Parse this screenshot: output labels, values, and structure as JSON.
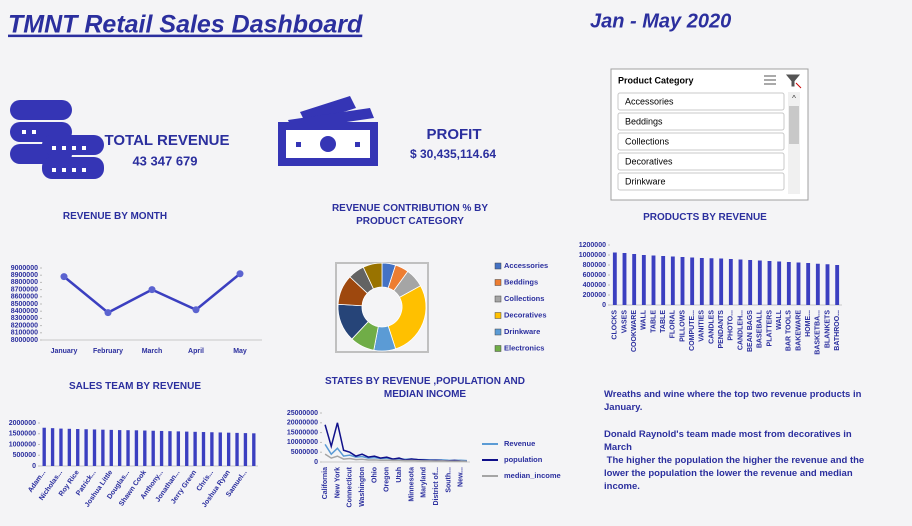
{
  "header": {
    "title": "TMNT Retail Sales  Dashboard",
    "period": "Jan - May 2020"
  },
  "kpis": [
    {
      "label": "TOTAL REVENUE",
      "value": "43 347 679"
    },
    {
      "label": "PROFIT",
      "value": "$ 30,435,114.64"
    }
  ],
  "slicer": {
    "title": "Product Category",
    "items": [
      "Accessories",
      "Beddings",
      "Collections",
      "Decoratives",
      "Drinkware"
    ]
  },
  "notes": [
    "Wreaths and wine where the top two revenue products in January.",
    "Donald Raynold's team made most from decoratives in March",
    " The higher the population the higher the revenue and the lower the population the lower the revenue and median income."
  ],
  "chart_data": [
    {
      "type": "line",
      "title": "REVENUE BY MONTH",
      "categories": [
        "January",
        "February",
        "March",
        "April",
        "May"
      ],
      "values": [
        8880000,
        8380000,
        8700000,
        8420000,
        8920000
      ],
      "color": "#3b3fc0",
      "ylim": [
        8000000,
        9000000
      ],
      "yticks": [
        8000000,
        8100000,
        8200000,
        8300000,
        8400000,
        8500000,
        8600000,
        8700000,
        8800000,
        8900000,
        9000000
      ]
    },
    {
      "type": "pie",
      "title": "REVENUE CONTRIBUTION % BY PRODUCT CATEGORY",
      "categories": [
        "Accessories",
        "Beddings",
        "Collections",
        "Decoratives",
        "Drinkware",
        "Electronics",
        null,
        null,
        null,
        null
      ],
      "values": [
        5,
        5,
        7,
        28,
        8,
        9,
        14,
        11,
        6,
        7
      ],
      "colors": [
        "#4472c4",
        "#ed7d31",
        "#a5a5a5",
        "#ffc000",
        "#5b9bd5",
        "#70ad47",
        "#264478",
        "#9e480e",
        "#636363",
        "#997300"
      ]
    },
    {
      "type": "bar",
      "title": "PRODUCTS BY REVENUE",
      "categories": [
        "CLOCKS",
        "VASES",
        "COOKWARE",
        "WALL",
        "TABLE",
        "TABLE",
        "FLORAL",
        "PILLOWS",
        "COMPUTE...",
        "VANITIES",
        "CANDLES",
        "PENDANTS",
        "PHOTO...",
        "CANDLEH...",
        "BEAN BAGS",
        "BASEBALL",
        "PLATTERS",
        "WALL",
        "BAR TOOLS",
        "BAKEWARE",
        "HOME...",
        "BASKETBA...",
        "BLANKETS",
        "BATHROO..."
      ],
      "values": [
        1050000,
        1040000,
        1020000,
        1000000,
        990000,
        980000,
        970000,
        960000,
        950000,
        940000,
        935000,
        930000,
        920000,
        910000,
        900000,
        890000,
        880000,
        870000,
        860000,
        850000,
        840000,
        825000,
        815000,
        800000
      ],
      "color": "#3b3fc0",
      "ylim": [
        0,
        1200000
      ],
      "yticks": [
        0,
        200000,
        400000,
        600000,
        800000,
        1000000,
        1200000
      ]
    },
    {
      "type": "bar",
      "title": "SALES TEAM BY REVENUE",
      "categories": [
        "Adam...",
        null,
        "Nicholas...",
        null,
        "Roy Rice",
        null,
        "Patrick...",
        null,
        "Joshua Little",
        null,
        "Douglas...",
        null,
        "Shawn Cook",
        null,
        "Anthony...",
        null,
        "Jonathan...",
        null,
        "Jerry Green",
        null,
        "Chris...",
        null,
        "Joshua Ryan",
        null,
        "Samuel...",
        null
      ],
      "values": [
        1780000,
        1760000,
        1740000,
        1730000,
        1720000,
        1710000,
        1700000,
        1690000,
        1680000,
        1670000,
        1665000,
        1660000,
        1650000,
        1640000,
        1630000,
        1620000,
        1610000,
        1600000,
        1590000,
        1580000,
        1570000,
        1560000,
        1550000,
        1540000,
        1530000,
        1520000
      ],
      "color": "#3b3fc0",
      "ylim": [
        0,
        2000000
      ],
      "yticks": [
        0,
        500000,
        1000000,
        1500000,
        2000000
      ]
    },
    {
      "type": "line",
      "title": "STATES BY REVENUE ,POPULATION AND MEDIAN INCOME",
      "categories": [
        "California",
        null,
        "New York",
        null,
        "Connecticut",
        null,
        "Washington",
        null,
        "Ohio",
        null,
        "Oregon",
        null,
        "Utah",
        null,
        "Minnesota",
        null,
        "Maryland",
        null,
        "District of...",
        null,
        "South...",
        null,
        "New...",
        null
      ],
      "series": [
        {
          "name": "Revenue",
          "color": "#5b9bd5",
          "values": [
            9000000,
            4000000,
            7000000,
            3000000,
            3500000,
            2500000,
            2800000,
            2000000,
            2200000,
            1800000,
            1900000,
            1500000,
            1600000,
            1400000,
            1500000,
            1300000,
            1200000,
            1100000,
            1000000,
            1100000,
            900000,
            800000,
            900000,
            700000
          ]
        },
        {
          "name": "population",
          "color": "#10108a",
          "values": [
            19000000,
            8000000,
            20000000,
            6000000,
            5000000,
            3000000,
            4000000,
            2500000,
            3000000,
            2000000,
            2500000,
            1500000,
            2000000,
            1000000,
            1500000,
            1200000,
            1000000,
            800000,
            900000,
            700000,
            600000,
            800000,
            500000,
            400000
          ]
        },
        {
          "name": "median_income",
          "color": "#a5a5a5",
          "values": [
            4000000,
            2000000,
            3000000,
            1500000,
            1800000,
            1200000,
            1400000,
            1000000,
            1100000,
            900000,
            950000,
            800000,
            850000,
            700000,
            750000,
            650000,
            600000,
            550000,
            500000,
            550000,
            450000,
            400000,
            450000,
            350000
          ]
        }
      ],
      "ylim": [
        0,
        25000000
      ],
      "yticks": [
        0,
        5000000,
        10000000,
        15000000,
        20000000,
        25000000
      ]
    }
  ]
}
